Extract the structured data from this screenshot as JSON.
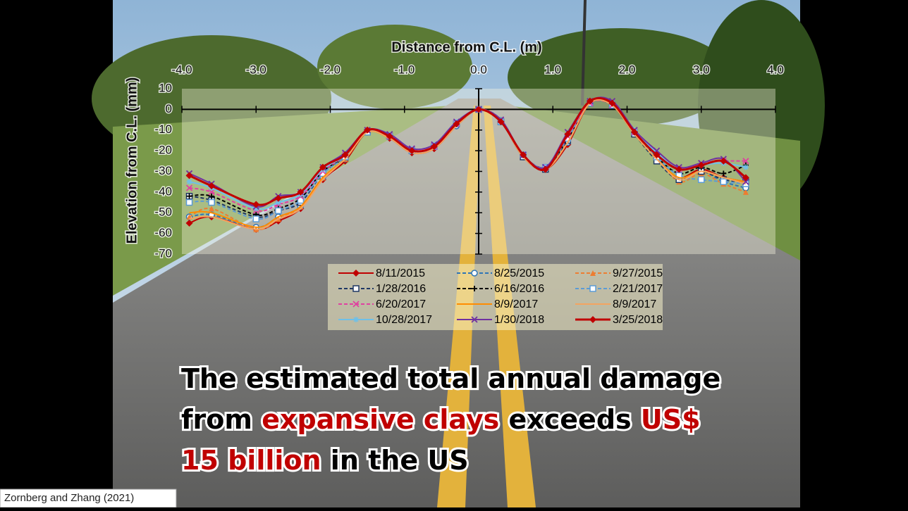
{
  "chart_data": {
    "type": "line",
    "x_label": "Distance from C.L. (m)",
    "y_label": "Elevation from C.L. (mm)",
    "x": [
      -3.9,
      -3.6,
      -3.0,
      -2.7,
      -2.4,
      -2.1,
      -1.8,
      -1.5,
      -1.2,
      -0.9,
      -0.6,
      -0.3,
      0,
      0.3,
      0.6,
      0.9,
      1.2,
      1.5,
      1.8,
      2.1,
      2.4,
      2.7,
      3.0,
      3.3,
      3.6
    ],
    "xlim": [
      -4,
      4
    ],
    "xticks": [
      {
        "value": -4,
        "label": "-4.0"
      },
      {
        "value": -3,
        "label": "-3.0"
      },
      {
        "value": -2,
        "label": "-2.0"
      },
      {
        "value": -1,
        "label": "-1.0"
      },
      {
        "value": 0,
        "label": "0.0"
      },
      {
        "value": 1,
        "label": "1.0"
      },
      {
        "value": 2,
        "label": "2.0"
      },
      {
        "value": 3,
        "label": "3.0"
      },
      {
        "value": 4,
        "label": "4.0"
      }
    ],
    "ylim": [
      -70,
      10
    ],
    "yticks": [
      10,
      0,
      -10,
      -20,
      -30,
      -40,
      -50,
      -60,
      -70
    ],
    "series": [
      {
        "name": "8/11/2015",
        "color": "#c00000",
        "dash": false,
        "marker": "diamond",
        "values": [
          -55,
          -52,
          -58,
          -54,
          -48,
          -34,
          -25,
          -11,
          -14,
          -21,
          -19,
          -8,
          0,
          -6,
          -23,
          -29,
          -17,
          3,
          2,
          -12,
          -24,
          -33,
          -29,
          -33,
          -35
        ]
      },
      {
        "name": "8/25/2015",
        "color": "#2e75b6",
        "dash": true,
        "marker": "circle",
        "values": [
          -52,
          -51,
          -57,
          -52,
          -47,
          -33,
          -24,
          -11,
          -13,
          -20,
          -18,
          -8,
          0,
          -6,
          -23,
          -28,
          -16,
          3,
          2,
          -11,
          -23,
          -34,
          -30,
          -35,
          -38
        ]
      },
      {
        "name": "9/27/2015",
        "color": "#ed7d31",
        "dash": true,
        "marker": "triangle",
        "values": [
          -52,
          -48,
          -58,
          -53,
          -47,
          -33,
          -24,
          -11,
          -13,
          -20,
          -18,
          -7,
          0,
          -5,
          -22,
          -28,
          -15,
          3,
          2,
          -11,
          -23,
          -35,
          -31,
          -36,
          -40
        ]
      },
      {
        "name": "1/28/2016",
        "color": "#1f3864",
        "dash": true,
        "marker": "square",
        "values": [
          -42,
          -44,
          -52,
          -49,
          -45,
          -31,
          -23,
          -11,
          -13,
          -20,
          -18,
          -7,
          0,
          -6,
          -23,
          -29,
          -15,
          3,
          2,
          -12,
          -25,
          -34,
          -30,
          -34,
          -35
        ]
      },
      {
        "name": "6/16/2016",
        "color": "#000000",
        "dash": true,
        "marker": "plus",
        "values": [
          -42,
          -42,
          -51,
          -48,
          -43,
          -30,
          -23,
          -10,
          -13,
          -20,
          -18,
          -7,
          0,
          -5,
          -22,
          -28,
          -14,
          3,
          2,
          -11,
          -23,
          -31,
          -28,
          -31,
          -27
        ]
      },
      {
        "name": "2/21/2017",
        "color": "#5b9bd5",
        "dash": true,
        "marker": "square",
        "values": [
          -45,
          -45,
          -53,
          -49,
          -44,
          -31,
          -23,
          -11,
          -13,
          -20,
          -18,
          -7,
          0,
          -6,
          -22,
          -28,
          -14,
          3,
          2,
          -11,
          -23,
          -32,
          -34,
          -35,
          -36
        ]
      },
      {
        "name": "6/20/2017",
        "color": "#e040a0",
        "dash": true,
        "marker": "x",
        "values": [
          -38,
          -40,
          -49,
          -46,
          -42,
          -30,
          -22,
          -10,
          -13,
          -19,
          -18,
          -7,
          0,
          -5,
          -22,
          -28,
          -13,
          3,
          2,
          -11,
          -22,
          -29,
          -26,
          -25,
          -25
        ]
      },
      {
        "name": "8/9/2017",
        "color": "#ff8c00",
        "dash": false,
        "marker": "none",
        "values": [
          -50,
          -50,
          -57,
          -52,
          -47,
          -33,
          -24,
          -11,
          -14,
          -20,
          -18,
          -8,
          0,
          -6,
          -23,
          -29,
          -16,
          3,
          2,
          -12,
          -24,
          -33,
          -30,
          -33,
          -35
        ]
      },
      {
        "name": "8/9/2017",
        "color": "#f4a460",
        "dash": false,
        "marker": "none",
        "values": [
          -53,
          -52,
          -58,
          -53,
          -48,
          -34,
          -24,
          -11,
          -14,
          -21,
          -19,
          -8,
          0,
          -6,
          -23,
          -29,
          -16,
          3,
          2,
          -12,
          -24,
          -34,
          -30,
          -33,
          -36
        ]
      },
      {
        "name": "10/28/2017",
        "color": "#6fc0e8",
        "dash": false,
        "marker": "star",
        "values": [
          -35,
          -38,
          -48,
          -45,
          -41,
          -29,
          -22,
          -10,
          -12,
          -19,
          -17,
          -6,
          0,
          -5,
          -22,
          -28,
          -12,
          4,
          3,
          -10,
          -21,
          -29,
          -27,
          -26,
          -28
        ]
      },
      {
        "name": "1/30/2018",
        "color": "#7030a0",
        "dash": false,
        "marker": "x",
        "values": [
          -31,
          -36,
          -47,
          -42,
          -40,
          -28,
          -21,
          -10,
          -12,
          -19,
          -17,
          -6,
          0,
          -5,
          -22,
          -28,
          -11,
          4,
          4,
          -10,
          -20,
          -28,
          -26,
          -24,
          -35
        ]
      },
      {
        "name": "3/25/2018",
        "color": "#c00000",
        "dash": false,
        "marker": "diamond",
        "values": [
          -32,
          -37,
          -46,
          -43,
          -40,
          -28,
          -22,
          -10,
          -13,
          -20,
          -18,
          -7,
          0,
          -6,
          -22,
          -29,
          -12,
          4,
          3,
          -11,
          -22,
          -29,
          -27,
          -25,
          -33
        ]
      }
    ]
  },
  "headline": [
    [
      {
        "text": "The estimated total annual damage",
        "emphasis": false
      }
    ],
    [
      {
        "text": "from ",
        "emphasis": false
      },
      {
        "text": "expansive clays",
        "emphasis": true
      },
      {
        "text": " exceeds ",
        "emphasis": false
      },
      {
        "text": "US$",
        "emphasis": true
      }
    ],
    [
      {
        "text": "15 billion",
        "emphasis": true
      },
      {
        "text": " in the US",
        "emphasis": false
      }
    ]
  ],
  "citation": "Zornberg and Zhang (2021)"
}
